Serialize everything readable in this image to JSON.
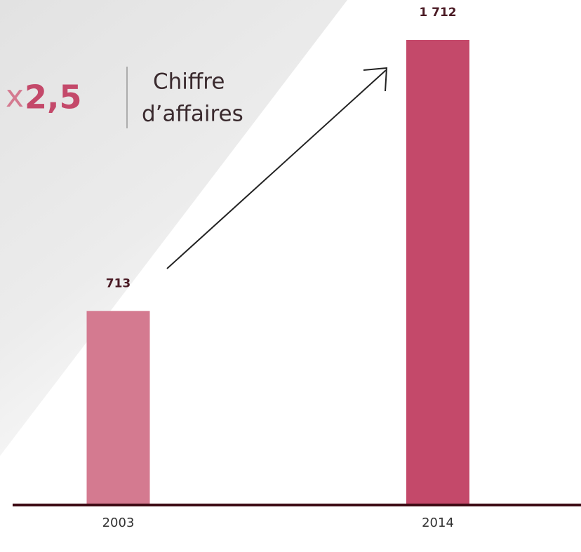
{
  "chart_data": {
    "type": "bar",
    "categories": [
      "2003",
      "2014"
    ],
    "values": [
      713,
      1712
    ],
    "value_labels": [
      "713",
      "1 712"
    ],
    "colors": [
      "#d47a90",
      "#c4496a"
    ],
    "annotation": {
      "prefix": "x",
      "factor": "2,5",
      "label": [
        "Chiffre",
        "d’affaires"
      ]
    }
  }
}
